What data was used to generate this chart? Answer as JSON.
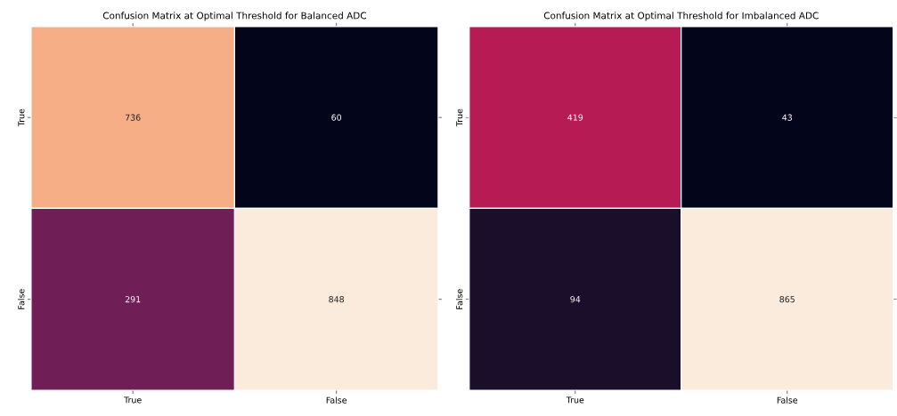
{
  "chart_data": [
    {
      "type": "heatmap",
      "title": "Confusion Matrix at Optimal Threshold for Balanced ADC",
      "categories": [
        "True",
        "False"
      ],
      "y_categories": [
        "True",
        "False"
      ],
      "cells": [
        [
          736,
          60
        ],
        [
          291,
          848
        ]
      ],
      "data_labels": true
    },
    {
      "type": "heatmap",
      "title": "Confusion Matrix at Optimal Threshold for Imbalanced ADC",
      "categories": [
        "True",
        "False"
      ],
      "y_categories": [
        "True",
        "False"
      ],
      "cells": [
        [
          419,
          43
        ],
        [
          94,
          865
        ]
      ],
      "data_labels": true
    }
  ]
}
